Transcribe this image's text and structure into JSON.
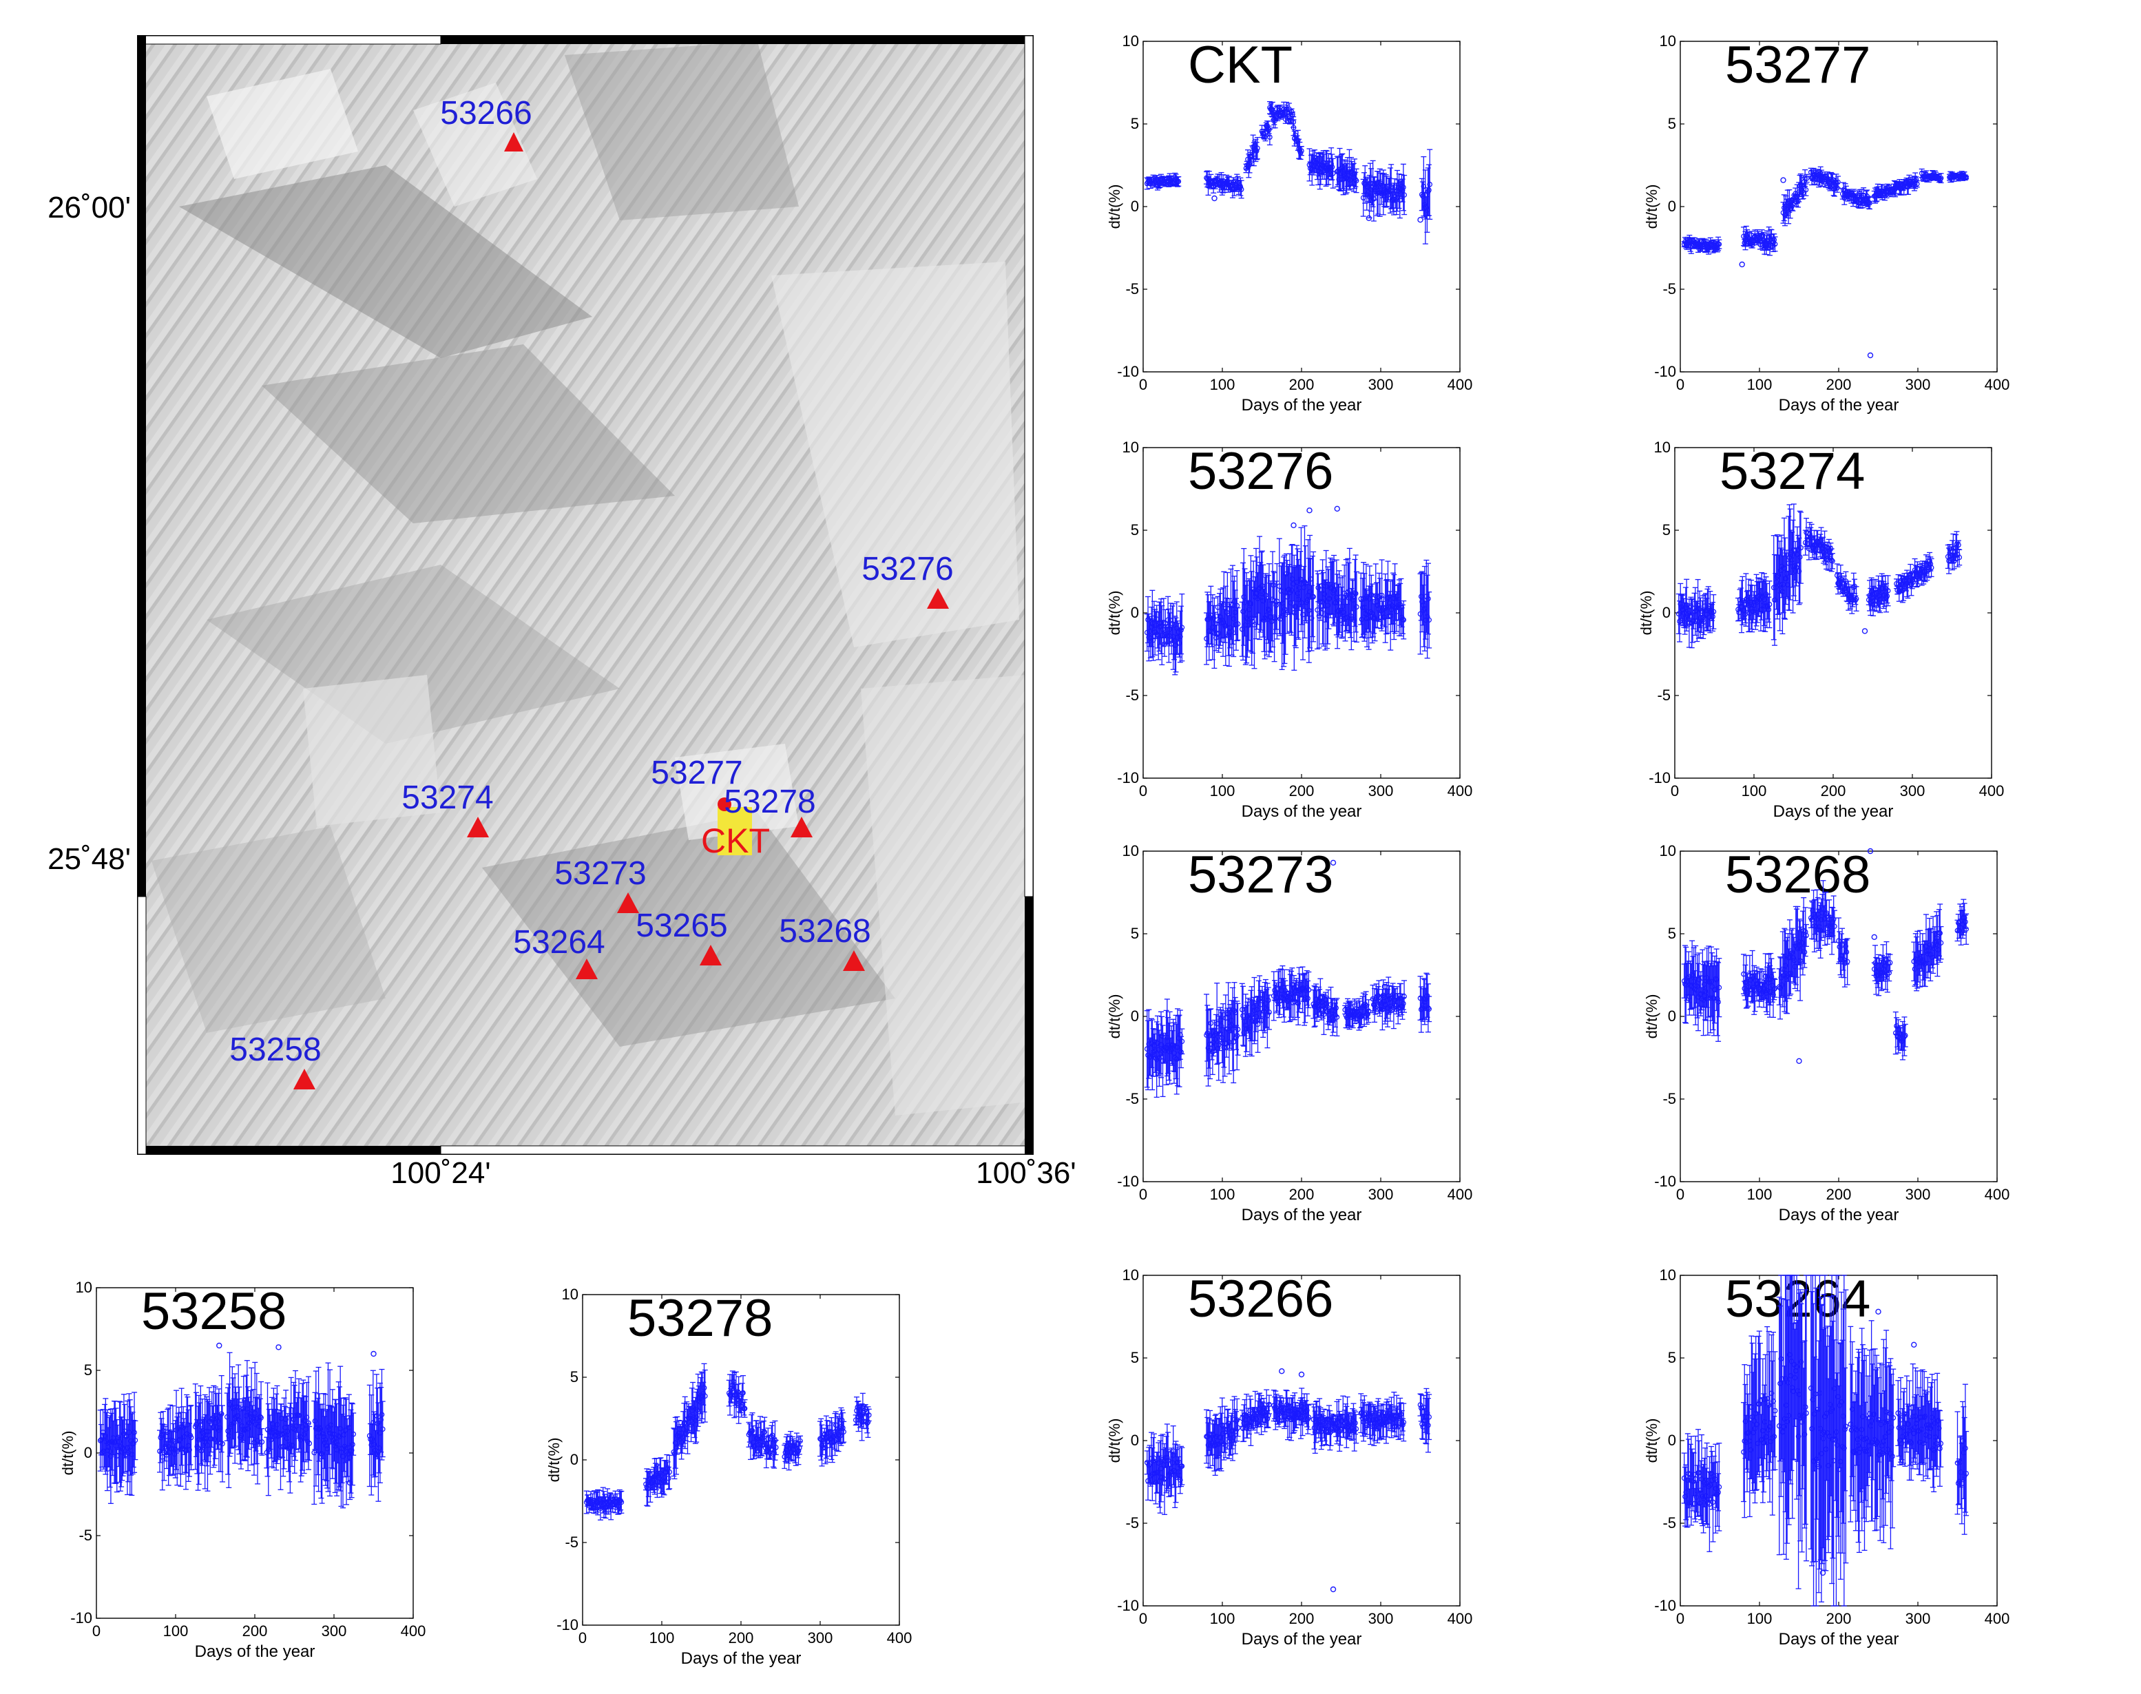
{
  "figure": {
    "map": {
      "lat_labels": [
        "26˚00'",
        "25˚48'"
      ],
      "lon_labels": [
        "100˚24'",
        "100˚36'"
      ],
      "stations": [
        {
          "name": "53266",
          "symbol": "triangle"
        },
        {
          "name": "53276",
          "symbol": "triangle"
        },
        {
          "name": "53274",
          "symbol": "triangle"
        },
        {
          "name": "53277",
          "symbol": "circle"
        },
        {
          "name": "53278",
          "symbol": "triangle"
        },
        {
          "name": "53273",
          "symbol": "triangle"
        },
        {
          "name": "53264",
          "symbol": "triangle"
        },
        {
          "name": "53265",
          "symbol": "triangle"
        },
        {
          "name": "53268",
          "symbol": "triangle"
        },
        {
          "name": "53258",
          "symbol": "triangle"
        }
      ],
      "center_label": "CKT",
      "colors": {
        "station_label": "#1f1fd6",
        "marker": "#e8141a",
        "center_label": "#e8141a",
        "center_fill": "#f3e63a",
        "hillshade": "#d4d4d4"
      }
    },
    "colors": {
      "series": "#1a1aff",
      "axes": "#000000",
      "background": "#ffffff"
    }
  },
  "chart_data": [
    {
      "type": "scatter",
      "title": "CKT",
      "xlabel": "Days of the year",
      "ylabel": "dt/t(%)",
      "xlim": [
        0,
        400
      ],
      "ylim": [
        -10,
        10
      ],
      "xticks": [
        0,
        100,
        200,
        300,
        400
      ],
      "yticks": [
        10,
        5,
        0,
        -5,
        -10
      ],
      "segments": [
        [
          5,
          45,
          1.5,
          1.6,
          0.2,
          0.25
        ],
        [
          80,
          125,
          1.5,
          1.2,
          0.25,
          0.35
        ],
        [
          130,
          145,
          2.5,
          3.8,
          0.35,
          0.5
        ],
        [
          150,
          160,
          4.5,
          4.5,
          0.4,
          0.3
        ],
        [
          160,
          190,
          5.6,
          5.5,
          0.4,
          0.3
        ],
        [
          190,
          200,
          4.5,
          3.0,
          0.4,
          0.4
        ],
        [
          210,
          240,
          2.5,
          2.3,
          0.3,
          0.7
        ],
        [
          245,
          270,
          2.0,
          1.8,
          0.4,
          0.8
        ],
        [
          278,
          330,
          1.0,
          0.8,
          0.5,
          0.9
        ],
        [
          352,
          362,
          0.5,
          0.7,
          0.9,
          1.4
        ]
      ],
      "outliers": [
        [
          90,
          0.5
        ],
        [
          285,
          -0.7
        ],
        [
          350,
          -0.8
        ]
      ]
    },
    {
      "type": "scatter",
      "title": "53277",
      "xlabel": "Days of the year",
      "ylabel": "dt/t(%)",
      "xlim": [
        0,
        400
      ],
      "ylim": [
        -10,
        10
      ],
      "xticks": [
        0,
        100,
        200,
        300,
        400
      ],
      "yticks": [
        10,
        5,
        0,
        -5,
        -10
      ],
      "segments": [
        [
          5,
          50,
          -2.2,
          -2.4,
          0.2,
          0.3
        ],
        [
          80,
          120,
          -2.0,
          -2.1,
          0.3,
          0.4
        ],
        [
          130,
          160,
          -0.5,
          1.5,
          0.4,
          0.5
        ],
        [
          165,
          200,
          2.0,
          1.2,
          0.3,
          0.3
        ],
        [
          205,
          240,
          0.8,
          0.3,
          0.3,
          0.3
        ],
        [
          245,
          300,
          0.8,
          1.5,
          0.2,
          0.3
        ],
        [
          305,
          330,
          1.9,
          1.7,
          0.15,
          0.2
        ],
        [
          340,
          362,
          1.8,
          1.8,
          0.1,
          0.2
        ]
      ],
      "outliers": [
        [
          78,
          -3.5
        ],
        [
          130,
          1.6
        ],
        [
          240,
          -9.0
        ]
      ]
    },
    {
      "type": "scatter",
      "title": "53276",
      "xlabel": "Days of the year",
      "ylabel": "dt/t(%)",
      "xlim": [
        0,
        400
      ],
      "ylim": [
        -10,
        10
      ],
      "xticks": [
        0,
        100,
        200,
        300,
        400
      ],
      "yticks": [
        10,
        5,
        0,
        -5,
        -10
      ],
      "segments": [
        [
          5,
          50,
          -1.0,
          -1.3,
          0.8,
          1.3
        ],
        [
          80,
          120,
          -0.8,
          -0.2,
          1.0,
          1.5
        ],
        [
          125,
          170,
          0.0,
          0.8,
          1.2,
          2.0
        ],
        [
          172,
          215,
          1.0,
          0.8,
          1.4,
          2.2
        ],
        [
          220,
          270,
          0.8,
          0.3,
          1.0,
          1.6
        ],
        [
          275,
          330,
          0.3,
          0.3,
          0.8,
          1.4
        ],
        [
          350,
          362,
          0.5,
          0.5,
          1.0,
          1.8
        ]
      ],
      "outliers": [
        [
          190,
          5.3
        ],
        [
          210,
          6.2
        ],
        [
          245,
          6.3
        ]
      ]
    },
    {
      "type": "scatter",
      "title": "53274",
      "xlabel": "Days of the year",
      "ylabel": "dt/t(%)",
      "xlim": [
        0,
        400
      ],
      "ylim": [
        -10,
        10
      ],
      "xticks": [
        0,
        100,
        200,
        300,
        400
      ],
      "yticks": [
        10,
        5,
        0,
        -5,
        -10
      ],
      "segments": [
        [
          5,
          50,
          0.0,
          -0.2,
          0.6,
          1.0
        ],
        [
          80,
          120,
          0.3,
          0.7,
          0.5,
          1.0
        ],
        [
          125,
          160,
          1.5,
          3.5,
          1.0,
          2.0
        ],
        [
          165,
          200,
          4.5,
          3.5,
          0.5,
          0.6
        ],
        [
          205,
          230,
          2.0,
          1.0,
          0.5,
          0.6
        ],
        [
          245,
          270,
          1.0,
          1.2,
          0.4,
          0.6
        ],
        [
          280,
          325,
          1.5,
          3.0,
          0.4,
          0.5
        ],
        [
          345,
          360,
          3.5,
          3.7,
          0.5,
          0.6
        ]
      ],
      "outliers": [
        [
          240,
          -1.1
        ]
      ]
    },
    {
      "type": "scatter",
      "title": "53273",
      "xlabel": "Days of the year",
      "ylabel": "dt/t(%)",
      "xlim": [
        0,
        400
      ],
      "ylim": [
        -10,
        10
      ],
      "xticks": [
        0,
        100,
        200,
        300,
        400
      ],
      "yticks": [
        10,
        5,
        0,
        -5,
        -10
      ],
      "segments": [
        [
          5,
          50,
          -2.0,
          -1.8,
          0.8,
          1.5
        ],
        [
          80,
          120,
          -1.5,
          -0.5,
          1.0,
          1.6
        ],
        [
          125,
          160,
          -0.3,
          0.8,
          0.8,
          1.4
        ],
        [
          165,
          210,
          1.4,
          1.3,
          0.6,
          1.0
        ],
        [
          215,
          245,
          1.0,
          0.0,
          0.5,
          0.8
        ],
        [
          255,
          285,
          0.2,
          0.4,
          0.4,
          0.6
        ],
        [
          290,
          330,
          0.9,
          0.8,
          0.5,
          0.8
        ],
        [
          350,
          362,
          1.0,
          1.0,
          0.6,
          1.0
        ]
      ],
      "outliers": [
        [
          240,
          9.3
        ],
        [
          305,
          1.8
        ]
      ]
    },
    {
      "type": "scatter",
      "title": "53268",
      "xlabel": "Days of the year",
      "ylabel": "dt/t(%)",
      "xlim": [
        0,
        400
      ],
      "ylim": [
        -10,
        10
      ],
      "xticks": [
        0,
        100,
        200,
        300,
        400
      ],
      "yticks": [
        10,
        5,
        0,
        -5,
        -10
      ],
      "segments": [
        [
          5,
          50,
          2.0,
          1.5,
          0.8,
          1.5
        ],
        [
          80,
          120,
          2.0,
          1.8,
          0.6,
          1.0
        ],
        [
          125,
          160,
          2.0,
          4.8,
          0.8,
          1.6
        ],
        [
          165,
          195,
          6.0,
          5.5,
          0.8,
          1.2
        ],
        [
          200,
          212,
          4.0,
          3.5,
          0.7,
          1.0
        ],
        [
          245,
          265,
          2.8,
          3.0,
          0.5,
          0.8
        ],
        [
          272,
          285,
          -0.8,
          -1.5,
          0.4,
          0.8
        ],
        [
          295,
          330,
          3.0,
          5.0,
          0.8,
          1.2
        ],
        [
          350,
          362,
          5.5,
          5.8,
          0.5,
          0.8
        ]
      ],
      "outliers": [
        [
          150,
          -2.7
        ],
        [
          245,
          4.8
        ],
        [
          240,
          10.0
        ]
      ]
    },
    {
      "type": "scatter",
      "title": "53258",
      "xlabel": "Days of the year",
      "ylabel": "dt/t(%)",
      "xlim": [
        0,
        400
      ],
      "ylim": [
        -10,
        10
      ],
      "xticks": [
        0,
        100,
        200,
        300,
        400
      ],
      "yticks": [
        10,
        5,
        0,
        -5,
        -10
      ],
      "segments": [
        [
          5,
          50,
          0.5,
          0.6,
          0.8,
          1.8
        ],
        [
          80,
          120,
          0.5,
          1.0,
          0.8,
          1.5
        ],
        [
          125,
          160,
          1.0,
          1.5,
          1.0,
          1.8
        ],
        [
          165,
          210,
          2.0,
          1.5,
          1.0,
          2.0
        ],
        [
          215,
          270,
          1.0,
          1.5,
          1.0,
          1.8
        ],
        [
          275,
          325,
          1.0,
          0.5,
          1.0,
          2.5
        ],
        [
          345,
          362,
          1.0,
          1.2,
          1.2,
          2.0
        ]
      ],
      "outliers": [
        [
          155,
          6.5
        ],
        [
          230,
          6.4
        ],
        [
          350,
          6.0
        ],
        [
          320,
          -1.8
        ]
      ]
    },
    {
      "type": "scatter",
      "title": "53278",
      "xlabel": "Days of the year",
      "ylabel": "dt/t(%)",
      "xlim": [
        0,
        400
      ],
      "ylim": [
        -10,
        10
      ],
      "xticks": [
        0,
        100,
        200,
        300,
        400
      ],
      "yticks": [
        10,
        5,
        0,
        -5,
        -10
      ],
      "segments": [
        [
          5,
          50,
          -2.7,
          -2.6,
          0.3,
          0.5
        ],
        [
          80,
          110,
          -1.5,
          -0.8,
          0.4,
          0.7
        ],
        [
          115,
          155,
          0.5,
          4.0,
          0.6,
          1.0
        ],
        [
          185,
          205,
          4.5,
          3.5,
          0.6,
          0.9
        ],
        [
          210,
          245,
          1.5,
          0.8,
          0.6,
          0.8
        ],
        [
          255,
          275,
          0.5,
          0.8,
          0.4,
          0.6
        ],
        [
          300,
          330,
          1.0,
          2.0,
          0.5,
          0.8
        ],
        [
          345,
          362,
          2.8,
          2.6,
          0.5,
          0.7
        ]
      ],
      "outliers": []
    },
    {
      "type": "scatter",
      "title": "53266",
      "xlabel": "Days of the year",
      "ylabel": "dt/t(%)",
      "xlim": [
        0,
        400
      ],
      "ylim": [
        -10,
        10
      ],
      "xticks": [
        0,
        100,
        200,
        300,
        400
      ],
      "yticks": [
        10,
        5,
        0,
        -5,
        -10
      ],
      "segments": [
        [
          5,
          50,
          -1.8,
          -1.6,
          0.8,
          1.4
        ],
        [
          80,
          120,
          -0.2,
          0.7,
          0.7,
          1.2
        ],
        [
          125,
          160,
          1.2,
          1.8,
          0.5,
          0.9
        ],
        [
          165,
          210,
          1.8,
          1.5,
          0.5,
          0.8
        ],
        [
          215,
          270,
          1.0,
          1.0,
          0.5,
          0.8
        ],
        [
          275,
          330,
          1.2,
          1.3,
          0.5,
          0.8
        ],
        [
          350,
          362,
          1.5,
          1.5,
          0.7,
          1.2
        ]
      ],
      "outliers": [
        [
          240,
          -9.0
        ],
        [
          175,
          4.2
        ],
        [
          200,
          4.0
        ]
      ]
    },
    {
      "type": "scatter",
      "title": "53264",
      "xlabel": "Days of the year",
      "ylabel": "dt/t(%)",
      "xlim": [
        0,
        400
      ],
      "ylim": [
        -10,
        10
      ],
      "xticks": [
        0,
        100,
        200,
        300,
        400
      ],
      "yticks": [
        10,
        5,
        0,
        -5,
        -10
      ],
      "segments": [
        [
          5,
          50,
          -3.0,
          -2.8,
          1.0,
          1.8
        ],
        [
          80,
          120,
          0.5,
          1.5,
          1.5,
          3.0
        ],
        [
          125,
          160,
          3.0,
          2.5,
          2.5,
          6.0
        ],
        [
          165,
          210,
          1.0,
          0.5,
          2.5,
          7.0
        ],
        [
          215,
          270,
          0.5,
          0.5,
          1.5,
          4.0
        ],
        [
          275,
          330,
          0.8,
          0.3,
          1.0,
          2.0
        ],
        [
          350,
          362,
          -1.5,
          -1.0,
          1.5,
          2.5
        ]
      ],
      "outliers": [
        [
          250,
          7.8
        ],
        [
          180,
          -8.0
        ],
        [
          295,
          5.8
        ]
      ]
    }
  ]
}
